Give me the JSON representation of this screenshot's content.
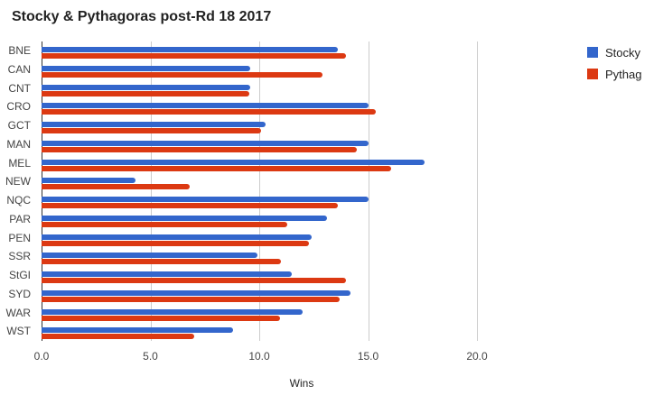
{
  "chart_data": {
    "type": "bar",
    "orientation": "horizontal",
    "title": "Stocky & Pythagoras post-Rd 18 2017",
    "xlabel": "Wins",
    "ylabel": "",
    "xlim": [
      0,
      20
    ],
    "xticks": [
      "0.0",
      "5.0",
      "10.0",
      "15.0",
      "20.0"
    ],
    "grid": true,
    "legend_position": "right",
    "categories": [
      "BNE",
      "CAN",
      "CNT",
      "CRO",
      "GCT",
      "MAN",
      "MEL",
      "NEW",
      "NQC",
      "PAR",
      "PEN",
      "SSR",
      "StGI",
      "SYD",
      "WAR",
      "WST"
    ],
    "series": [
      {
        "name": "Stocky",
        "color": "#3366cc",
        "values": [
          13.6,
          9.6,
          9.6,
          15.0,
          10.3,
          15.0,
          17.6,
          4.3,
          15.0,
          13.1,
          12.4,
          9.9,
          11.5,
          14.2,
          12.0,
          8.8
        ]
      },
      {
        "name": "Pythag",
        "color": "#dc3912",
        "values": [
          14.0,
          12.9,
          9.55,
          15.35,
          10.1,
          14.5,
          16.05,
          6.8,
          13.6,
          11.3,
          12.3,
          11.0,
          14.0,
          13.7,
          10.95,
          7.0
        ]
      }
    ]
  }
}
